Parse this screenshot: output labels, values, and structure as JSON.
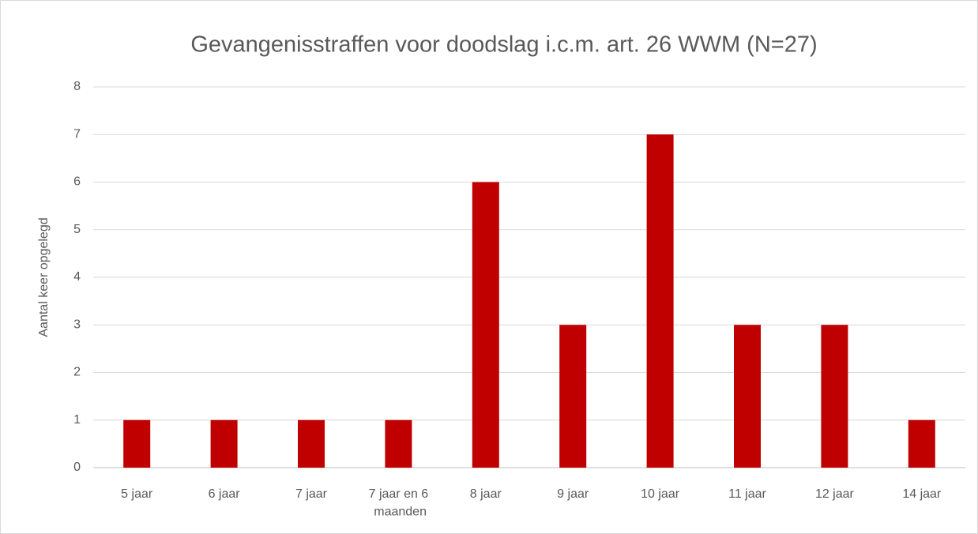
{
  "chart_data": {
    "type": "bar",
    "title": "Gevangenisstraffen voor doodslag i.c.m. art. 26 WWM (N=27)",
    "y_label": "Aantal keer opgelegd",
    "categories": [
      "5 jaar",
      "6 jaar",
      "7 jaar",
      "7 jaar en 6 maanden",
      "8 jaar",
      "9 jaar",
      "10 jaar",
      "11 jaar",
      "12 jaar",
      "14 jaar"
    ],
    "values": [
      1,
      1,
      1,
      1,
      6,
      3,
      7,
      3,
      3,
      1
    ],
    "color": "#c00000",
    "ylim": [
      0,
      8
    ],
    "yticks": [
      0,
      1,
      2,
      3,
      4,
      5,
      6,
      7,
      8
    ],
    "grid": true
  }
}
